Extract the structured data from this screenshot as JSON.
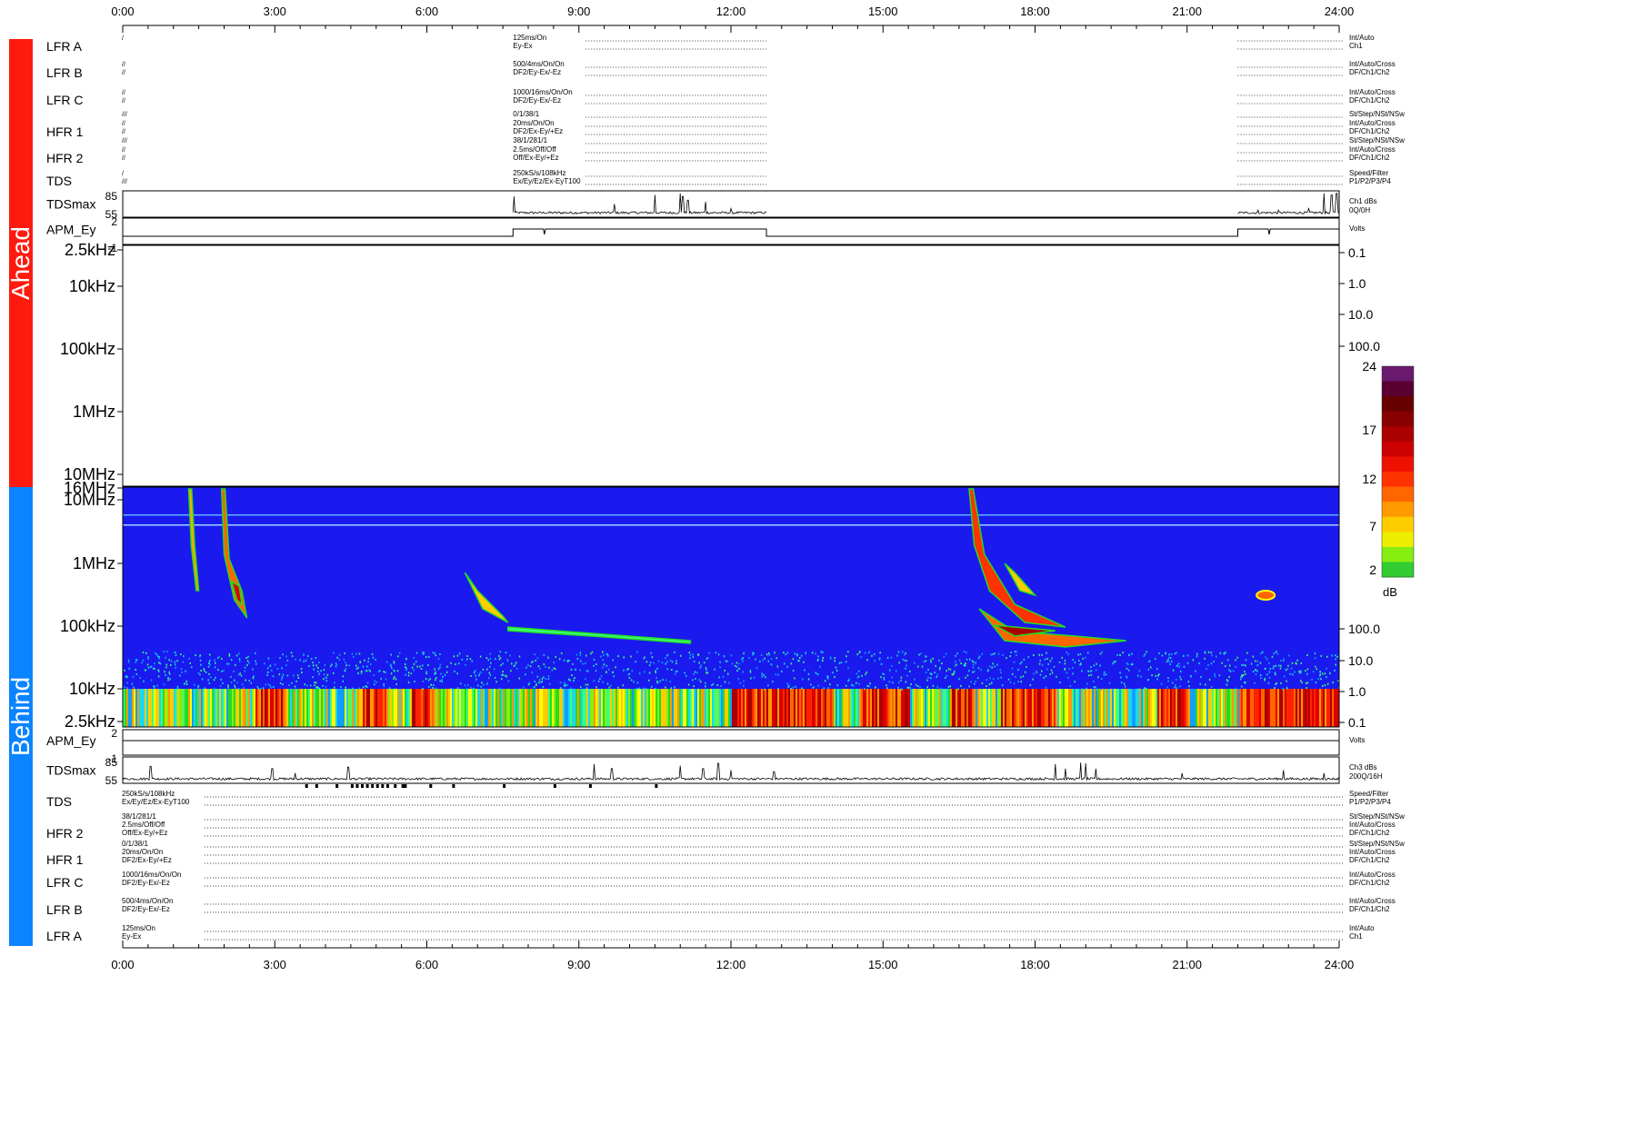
{
  "sides": {
    "ahead": {
      "label": "Ahead",
      "color": "#ff1a0e"
    },
    "behind": {
      "label": "Behind",
      "color": "#0a84ff"
    }
  },
  "time_axis": [
    "0:00",
    "3:00",
    "6:00",
    "9:00",
    "12:00",
    "15:00",
    "18:00",
    "21:00",
    "24:00"
  ],
  "ahead_instruments": [
    {
      "name": "LFR A",
      "marks": [
        "/",
        ""
      ],
      "settings": [
        "125ms/On",
        "Ey-Ex"
      ],
      "right": [
        "Int/Auto",
        "Ch1"
      ]
    },
    {
      "name": "LFR B",
      "marks": [
        "//",
        "//"
      ],
      "settings": [
        "500/4ms/On/On",
        "DF2/Ey-Ex/-Ez"
      ],
      "right": [
        "Int/Auto/Cross",
        "DF/Ch1/Ch2"
      ]
    },
    {
      "name": "LFR C",
      "marks": [
        "//",
        "//"
      ],
      "settings": [
        "1000/16ms/On/On",
        "DF2/Ey-Ex/-Ez"
      ],
      "right": [
        "Int/Auto/Cross",
        "DF/Ch1/Ch2"
      ]
    },
    {
      "name": "HFR 1",
      "marks": [
        "///",
        "//",
        "//"
      ],
      "settings": [
        "0/1/38/1",
        "20ms/On/On",
        "DF2/Ex-Ey/+Ez"
      ],
      "right": [
        "St/Step/NSt/NSw",
        "Int/Auto/Cross",
        "DF/Ch1/Ch2"
      ]
    },
    {
      "name": "HFR 2",
      "marks": [
        "///",
        "//",
        "//"
      ],
      "settings": [
        "38/1/281/1",
        "2.5ms/Off/Off",
        "Off/Ex-Ey/+Ez"
      ],
      "right": [
        "St/Step/NSt/NSw",
        "Int/Auto/Cross",
        "DF/Ch1/Ch2"
      ]
    },
    {
      "name": "TDS",
      "marks": [
        "/",
        "///"
      ],
      "settings": [
        "250kS/s/108kHz",
        "Ex/Ey/Ez/Ex-EyT100"
      ],
      "right": [
        "Speed/Filter",
        "P1/P2/P3/P4"
      ]
    }
  ],
  "ahead_tdsmax": {
    "name": "TDSmax",
    "ymax": "85",
    "ymin": "55",
    "right": [
      "Ch1 dBs",
      "0Q/0H"
    ]
  },
  "ahead_apm": {
    "name": "APM_Ey",
    "ymax": "2",
    "ymin": "-1",
    "right": [
      "Volts"
    ]
  },
  "ahead_spectrum": {
    "left_ticks": [
      "2.5kHz",
      "10kHz",
      "100kHz",
      "1MHz",
      "10MHz"
    ],
    "right_ticks": [
      "0.1",
      "1.0",
      "10.0",
      "100.0"
    ]
  },
  "behind_spectrum": {
    "left_ticks": [
      "16MHz",
      "10MHz",
      "1MHz",
      "100kHz",
      "10kHz",
      "2.5kHz"
    ],
    "right_ticks": [
      "100.0",
      "10.0",
      "1.0",
      "0.1"
    ]
  },
  "colorbar": {
    "ticks": [
      "24",
      "17",
      "12",
      "7",
      "2"
    ],
    "unit": "dB"
  },
  "behind_apm": {
    "name": "APM_Ey",
    "ymax": "2",
    "ymin": "-1",
    "right": [
      "Volts"
    ]
  },
  "behind_tdsmax": {
    "name": "TDSmax",
    "ymax": "85",
    "ymin": "55",
    "right": [
      "Ch3 dBs",
      "200Q/16H"
    ]
  },
  "behind_instruments": [
    {
      "name": "TDS",
      "settings": [
        "250kS/s/108kHz",
        "Ex/Ey/Ez/Ex-EyT100"
      ],
      "right": [
        "Speed/Filter",
        "P1/P2/P3/P4"
      ]
    },
    {
      "name": "HFR 2",
      "settings": [
        "38/1/281/1",
        "2.5ms/Off/Off",
        "Off/Ex-Ey/+Ez"
      ],
      "right": [
        "St/Step/NSt/NSw",
        "Int/Auto/Cross",
        "DF/Ch1/Ch2"
      ]
    },
    {
      "name": "HFR 1",
      "settings": [
        "0/1/38/1",
        "20ms/On/On",
        "DF2/Ex-Ey/+Ez"
      ],
      "right": [
        "St/Step/NSt/NSw",
        "Int/Auto/Cross",
        "DF/Ch1/Ch2"
      ]
    },
    {
      "name": "LFR C",
      "settings": [
        "1000/16ms/On/On",
        "DF2/Ey-Ex/-Ez"
      ],
      "right": [
        "Int/Auto/Cross",
        "DF/Ch1/Ch2"
      ]
    },
    {
      "name": "LFR B",
      "settings": [
        "500/4ms/On/On",
        "DF2/Ey-Ex/-Ez"
      ],
      "right": [
        "Int/Auto/Cross",
        "DF/Ch1/Ch2"
      ]
    },
    {
      "name": "LFR A",
      "settings": [
        "125ms/On",
        "Ey-Ex"
      ],
      "right": [
        "Int/Auto",
        "Ch1"
      ]
    }
  ],
  "chart_data": {
    "type": "heatmap",
    "x_unit": "hours (UT)",
    "xlim": [
      0,
      24
    ],
    "colorbar_range_dB": [
      2,
      24
    ],
    "ahead": {
      "data_intervals_hours": [
        [
          7.7,
          12.7
        ],
        [
          22.0,
          24.0
        ]
      ],
      "tdsmax_spikes": [
        {
          "t": 7.72,
          "v": 80
        },
        {
          "t": 9.7,
          "v": 70
        },
        {
          "t": 10.5,
          "v": 82
        },
        {
          "t": 11.0,
          "v": 84
        },
        {
          "t": 11.05,
          "v": 80
        },
        {
          "t": 11.15,
          "v": 75
        },
        {
          "t": 11.5,
          "v": 73
        },
        {
          "t": 12.0,
          "v": 64
        },
        {
          "t": 22.4,
          "v": 62
        },
        {
          "t": 22.8,
          "v": 62
        },
        {
          "t": 23.4,
          "v": 64
        },
        {
          "t": 23.7,
          "v": 84
        },
        {
          "t": 23.85,
          "v": 82
        },
        {
          "t": 23.95,
          "v": 84
        }
      ],
      "apm_level_volts": 0.5
    },
    "behind": {
      "data_intervals_hours": [
        [
          0,
          24
        ]
      ],
      "tdsmax_spikes": [
        {
          "t": 0.55,
          "v": 75
        },
        {
          "t": 2.95,
          "v": 72
        },
        {
          "t": 3.4,
          "v": 66
        },
        {
          "t": 4.45,
          "v": 74
        },
        {
          "t": 9.3,
          "v": 78
        },
        {
          "t": 9.65,
          "v": 72
        },
        {
          "t": 11.0,
          "v": 76
        },
        {
          "t": 11.45,
          "v": 72
        },
        {
          "t": 11.75,
          "v": 79
        },
        {
          "t": 12.0,
          "v": 70
        },
        {
          "t": 12.85,
          "v": 68
        },
        {
          "t": 18.4,
          "v": 78
        },
        {
          "t": 18.6,
          "v": 72
        },
        {
          "t": 18.9,
          "v": 80
        },
        {
          "t": 19.0,
          "v": 79
        },
        {
          "t": 19.2,
          "v": 72
        },
        {
          "t": 20.9,
          "v": 66
        },
        {
          "t": 22.9,
          "v": 70
        },
        {
          "t": 23.7,
          "v": 66
        }
      ],
      "radio_bursts": [
        {
          "start_hour": 1.3,
          "top_mhz": 16,
          "bottom_khz": 300
        },
        {
          "start_hour": 1.95,
          "top_mhz": 16,
          "bottom_khz": 120
        },
        {
          "start_hour": 6.8,
          "top_mhz": 0.6,
          "bottom_khz": 80
        },
        {
          "start_hour": 16.7,
          "top_mhz": 16,
          "bottom_khz": 60
        },
        {
          "start_hour": 22.5,
          "top_mhz": 0.28,
          "bottom_khz": 220
        }
      ]
    }
  }
}
